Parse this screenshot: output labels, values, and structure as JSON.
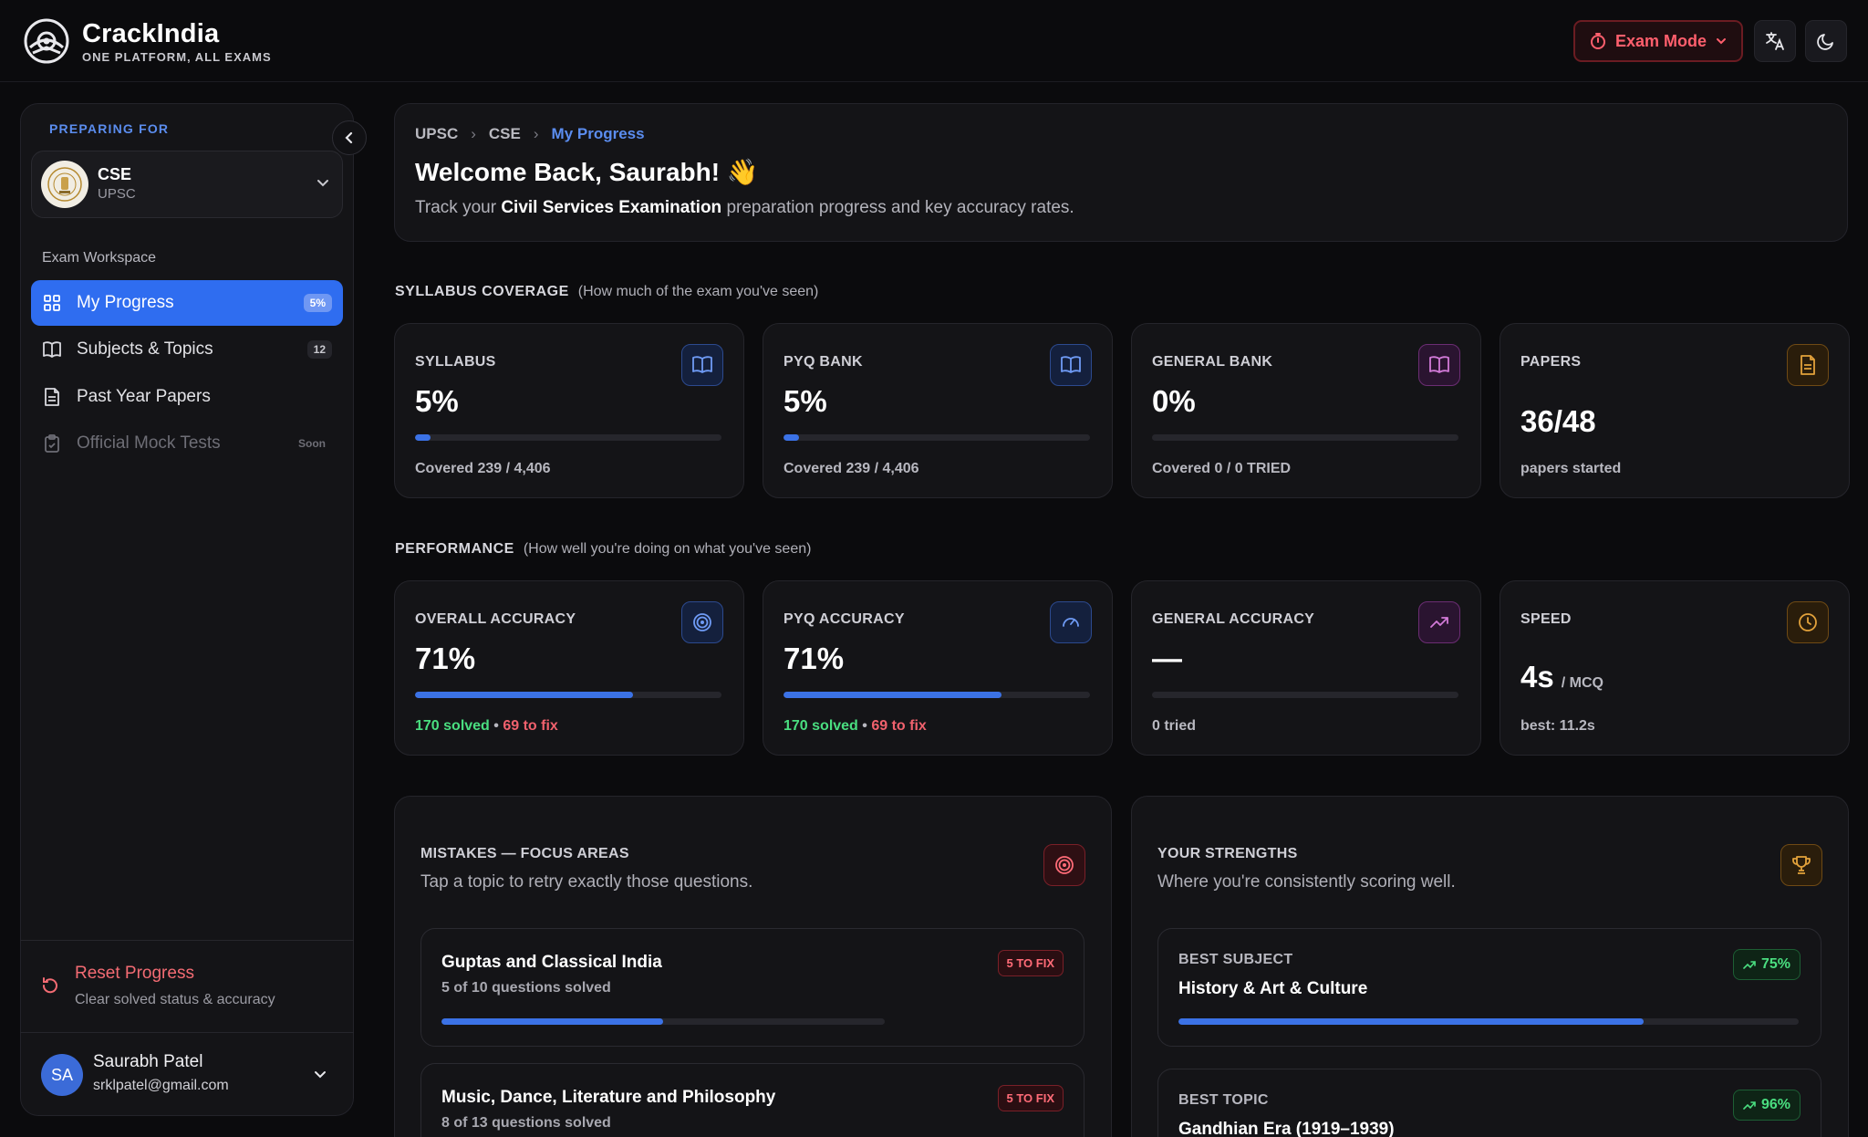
{
  "brand": {
    "name": "CrackIndia",
    "tagline": "ONE PLATFORM, ALL EXAMS"
  },
  "topbar": {
    "exam_mode_label": "Exam Mode"
  },
  "sidebar": {
    "preparing_label": "PREPARING FOR",
    "exam": {
      "name": "CSE",
      "body": "UPSC"
    },
    "workspace_label": "Exam Workspace",
    "items": [
      {
        "label": "My Progress",
        "badge": "5%"
      },
      {
        "label": "Subjects & Topics",
        "badge": "12"
      },
      {
        "label": "Past Year Papers",
        "badge": ""
      },
      {
        "label": "Official Mock Tests",
        "badge": "Soon"
      }
    ],
    "reset": {
      "title": "Reset Progress",
      "subtitle": "Clear solved status & accuracy"
    },
    "user": {
      "initials": "SA",
      "name": "Saurabh Patel",
      "email": "srklpatel@gmail.com"
    }
  },
  "header": {
    "breadcrumb": [
      "UPSC",
      "CSE",
      "My Progress"
    ],
    "welcome": "Welcome Back, Saurabh! 👋",
    "track_prefix": "Track your",
    "track_exam": "Civil Services Examination",
    "track_suffix": "preparation progress and key accuracy rates."
  },
  "syllabus_section": {
    "title": "SYLLABUS COVERAGE",
    "hint": "(How much of the exam you've seen)"
  },
  "syllabus_cards": [
    {
      "title": "SYLLABUS",
      "value": "5%",
      "progress": 0.05,
      "foot": "Covered 239 / 4,406",
      "icon": "book-open-icon"
    },
    {
      "title": "PYQ BANK",
      "value": "5%",
      "progress": 0.05,
      "foot": "Covered 239 / 4,406",
      "icon": "book-open-icon"
    },
    {
      "title": "GENERAL BANK",
      "value": "0%",
      "progress": 0,
      "foot": "Covered 0 / 0 TRIED",
      "icon": "book-open-icon"
    },
    {
      "title": "PAPERS",
      "value": "36/48",
      "foot": "papers started",
      "icon": "document-icon"
    }
  ],
  "performance_section": {
    "title": "PERFORMANCE",
    "hint": "(How well you're doing on what you've seen)"
  },
  "performance_cards": [
    {
      "title": "OVERALL ACCURACY",
      "value": "71%",
      "progress": 0.71,
      "solved": "170 solved",
      "dot": "•",
      "fix": "69 to fix",
      "icon": "target-icon"
    },
    {
      "title": "PYQ ACCURACY",
      "value": "71%",
      "progress": 0.71,
      "solved": "170 solved",
      "dot": "•",
      "fix": "69 to fix",
      "icon": "gauge-icon"
    },
    {
      "title": "GENERAL ACCURACY",
      "value": "—",
      "progress": 0,
      "foot": "0 tried",
      "icon": "trending-up-icon"
    },
    {
      "title": "SPEED",
      "value": "4s",
      "unit": "/ MCQ",
      "foot": "best: 11.2s",
      "icon": "clock-icon"
    }
  ],
  "mistakes": {
    "title": "MISTAKES — FOCUS AREAS",
    "subtitle": "Tap a topic to retry exactly those questions.",
    "items": [
      {
        "title": "Guptas and Classical India",
        "sub": "5 of 10 questions solved",
        "badge": "5 TO FIX",
        "progress": 0.5
      },
      {
        "title": "Music, Dance, Literature and Philosophy",
        "sub": "8 of 13 questions solved",
        "badge": "5 TO FIX",
        "progress": 0.615
      }
    ]
  },
  "strengths": {
    "title": "YOUR STRENGTHS",
    "subtitle": "Where you're consistently scoring well.",
    "items": [
      {
        "label": "BEST SUBJECT",
        "name": "History & Art & Culture",
        "pct": "75%",
        "progress": 0.75
      },
      {
        "label": "BEST TOPIC",
        "name": "Gandhian Era (1919–1939)",
        "pct": "96%",
        "progress": 0.96
      }
    ]
  },
  "colors": {
    "accent": "#2f6df0",
    "success": "#4ade80",
    "danger": "#f0616d",
    "background": "#0b0b0d",
    "card": "#141417"
  }
}
